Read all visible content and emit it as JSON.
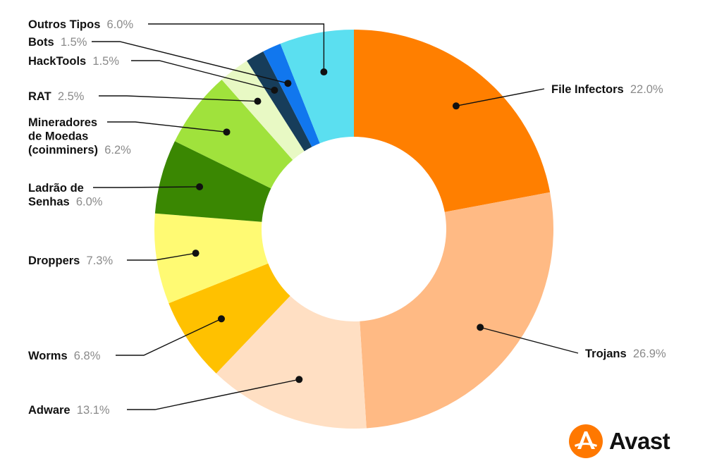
{
  "chart_data": {
    "type": "pie",
    "donut": true,
    "slices": [
      {
        "name": "File Infectors",
        "value_label": "22.0%",
        "value": 22.0,
        "color": "#ff7f00"
      },
      {
        "name": "Trojans",
        "value_label": "26.9%",
        "value": 26.9,
        "color": "#ffba84"
      },
      {
        "name": "Adware",
        "value_label": "13.1%",
        "value": 13.1,
        "color": "#ffdfc3"
      },
      {
        "name": "Worms",
        "value_label": "6.8%",
        "value": 6.8,
        "color": "#ffc100"
      },
      {
        "name": "Droppers",
        "value_label": "7.3%",
        "value": 7.3,
        "color": "#fffa73"
      },
      {
        "name_lines": [
          "Ladrão de",
          "Senhas"
        ],
        "value_label": "6.0%",
        "value": 6.0,
        "color": "#3a8702"
      },
      {
        "name_lines": [
          "Mineradores",
          "de Moedas",
          "(coinminers)"
        ],
        "value_label": "6.2%",
        "value": 6.2,
        "color": "#a0e23c"
      },
      {
        "name": "RAT",
        "value_label": "2.5%",
        "value": 2.5,
        "color": "#e8f9c4"
      },
      {
        "name": "HackTools",
        "value_label": "1.5%",
        "value": 1.5,
        "color": "#173d5a"
      },
      {
        "name": "Bots",
        "value_label": "1.5%",
        "value": 1.5,
        "color": "#1177ee"
      },
      {
        "name": "Outros Tipos",
        "value_label": "6.0%",
        "value": 6.0,
        "color": "#5bdff0"
      }
    ],
    "legend": "outside-labels"
  },
  "brand": {
    "name": "Avast",
    "color": "#ff7800"
  }
}
